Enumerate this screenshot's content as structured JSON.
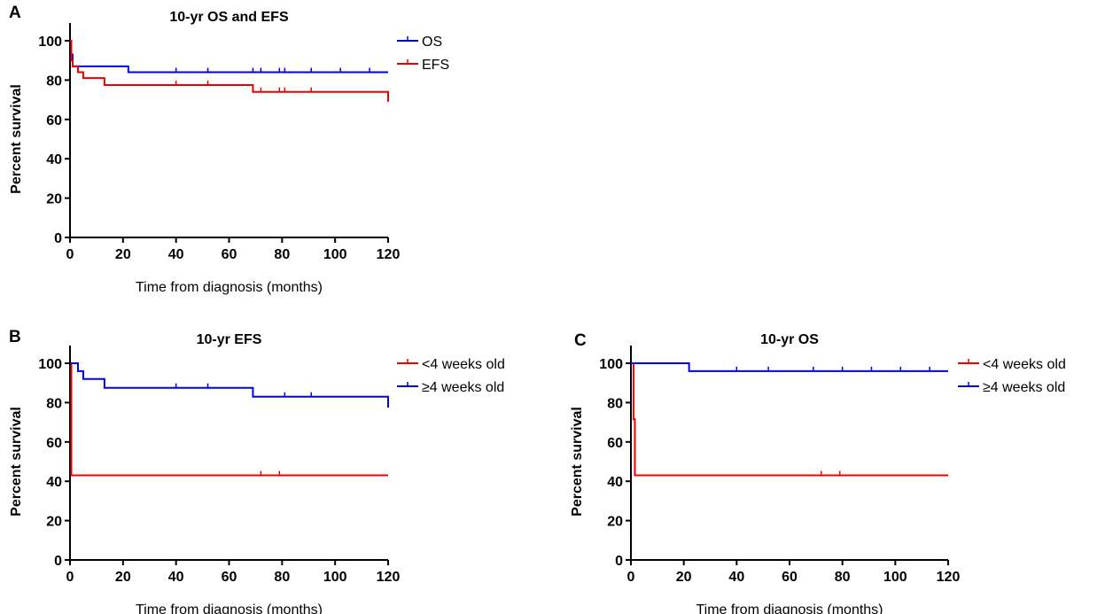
{
  "figure": {
    "chart_data": [
      {
        "type": "line",
        "subtype": "kaplan-meier",
        "panel": "A",
        "title": "10-yr OS and EFS",
        "xlabel": "Time from diagnosis (months)",
        "ylabel": "Percent survival",
        "xlim": [
          0,
          120
        ],
        "ylim": [
          0,
          100
        ],
        "xticks": [
          0,
          20,
          40,
          60,
          80,
          100,
          120
        ],
        "yticks": [
          0,
          20,
          40,
          60,
          80,
          100
        ],
        "grid": false,
        "legend_position": "top-right-outside",
        "series": [
          {
            "name": "OS",
            "color": "#0000ee",
            "steps": [
              [
                0,
                100
              ],
              [
                0.5,
                93
              ],
              [
                1,
                87
              ],
              [
                22,
                84
              ],
              [
                120,
                84
              ]
            ],
            "censored": [
              40,
              52,
              69,
              72,
              79,
              81,
              91,
              102,
              113
            ]
          },
          {
            "name": "EFS",
            "color": "#ee0000",
            "steps": [
              [
                0,
                100
              ],
              [
                0.5,
                90
              ],
              [
                1,
                87
              ],
              [
                3,
                84
              ],
              [
                5,
                81
              ],
              [
                13,
                77.5
              ],
              [
                69,
                74
              ],
              [
                119.5,
                74
              ],
              [
                120,
                69
              ]
            ],
            "censored": [
              40,
              52,
              72,
              79,
              81,
              91
            ]
          }
        ]
      },
      {
        "type": "line",
        "subtype": "kaplan-meier",
        "panel": "B",
        "title": "10-yr EFS",
        "xlabel": "Time from diagnosis (months)",
        "ylabel": "Percent survival",
        "xlim": [
          0,
          120
        ],
        "ylim": [
          0,
          100
        ],
        "xticks": [
          0,
          20,
          40,
          60,
          80,
          100,
          120
        ],
        "yticks": [
          0,
          20,
          40,
          60,
          80,
          100
        ],
        "grid": false,
        "legend_position": "top-right-outside",
        "series": [
          {
            "name": "<4 weeks old",
            "color": "#ee0000",
            "steps": [
              [
                0,
                100
              ],
              [
                0.5,
                43
              ],
              [
                120,
                43
              ]
            ],
            "censored": [
              72,
              79
            ]
          },
          {
            "name": "≥4 weeks old",
            "color": "#0000ee",
            "steps": [
              [
                0,
                100
              ],
              [
                3,
                96
              ],
              [
                5,
                92
              ],
              [
                13,
                87.5
              ],
              [
                69,
                83
              ],
              [
                119.5,
                83
              ],
              [
                120,
                77.5
              ]
            ],
            "censored": [
              40,
              52,
              81,
              91
            ]
          }
        ]
      },
      {
        "type": "line",
        "subtype": "kaplan-meier",
        "panel": "C",
        "title": "10-yr OS",
        "xlabel": "Time from diagnosis (months)",
        "ylabel": "Percent survival",
        "xlim": [
          0,
          120
        ],
        "ylim": [
          0,
          100
        ],
        "xticks": [
          0,
          20,
          40,
          60,
          80,
          100,
          120
        ],
        "yticks": [
          0,
          20,
          40,
          60,
          80,
          100
        ],
        "grid": false,
        "legend_position": "top-right-outside",
        "series": [
          {
            "name": "<4 weeks old",
            "color": "#ee0000",
            "steps": [
              [
                0,
                100
              ],
              [
                1,
                71.5
              ],
              [
                1.5,
                43
              ],
              [
                120,
                43
              ]
            ],
            "censored": [
              72,
              79
            ]
          },
          {
            "name": "≥4 weeks old",
            "color": "#0000ee",
            "steps": [
              [
                0,
                100
              ],
              [
                22,
                96
              ],
              [
                120,
                96
              ]
            ],
            "censored": [
              40,
              52,
              69,
              80,
              91,
              102,
              113
            ]
          }
        ]
      }
    ]
  }
}
